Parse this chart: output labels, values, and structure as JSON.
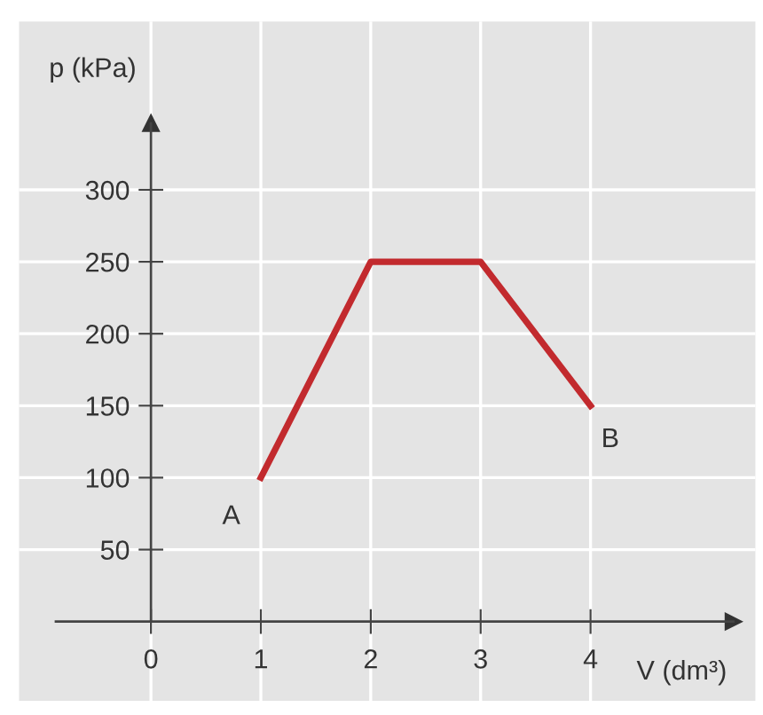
{
  "chart_data": {
    "type": "line",
    "xlabel": "V (dm³)",
    "ylabel": "p (kPa)",
    "x": [
      1,
      2,
      3,
      4
    ],
    "series": [
      {
        "color": "#c22a2e",
        "values": [
          100,
          250,
          250,
          150
        ]
      }
    ],
    "annotations": [
      {
        "text": "A",
        "x": 1,
        "y": 100
      },
      {
        "text": "B",
        "x": 4,
        "y": 150
      }
    ],
    "xlim": [
      -1.2,
      5.5
    ],
    "ylim": [
      -55,
      417
    ],
    "xticks": [
      0,
      1,
      2,
      3,
      4
    ],
    "yticks": [
      50,
      100,
      150,
      200,
      250,
      300
    ],
    "grid": true,
    "marker": "none",
    "line_style": "solid"
  }
}
